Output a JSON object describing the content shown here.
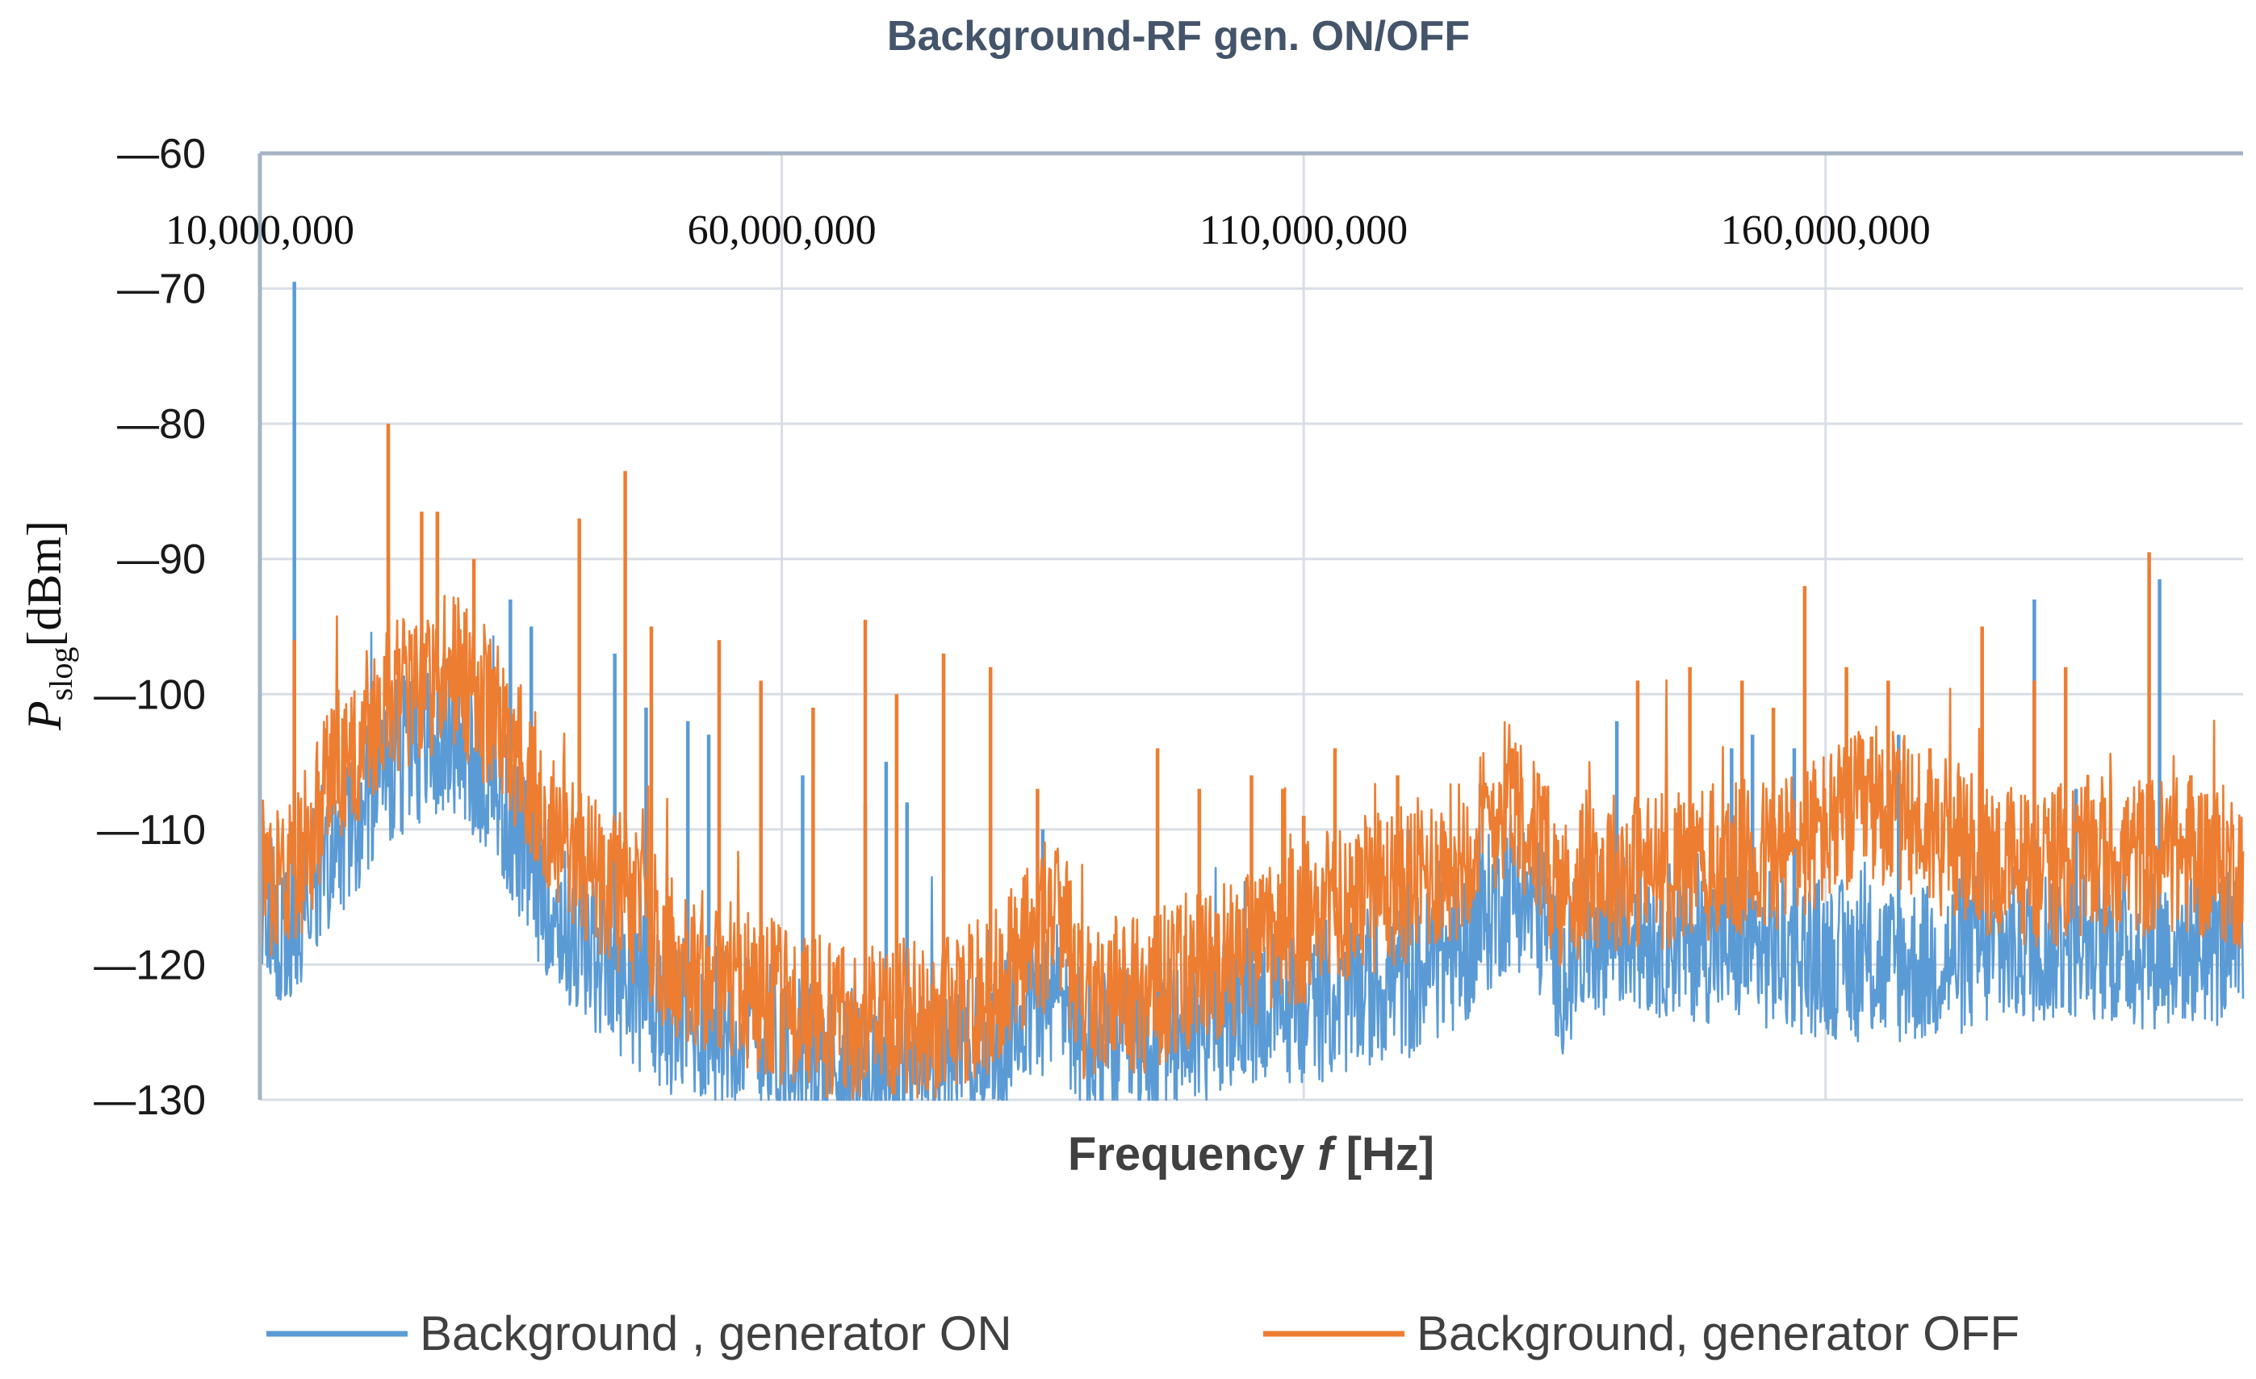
{
  "chart_data": {
    "type": "line",
    "title": "Background-RF gen. ON/OFF",
    "xlabel": "Frequency",
    "xlabel_var": "f",
    "xlabel_unit": "[Hz]",
    "ylabel_var": "P",
    "ylabel_sub": "slog",
    "ylabel_unit": "[dBm]",
    "xlim": [
      10000000,
      200000000
    ],
    "ylim": [
      -130,
      -60
    ],
    "x_ticks": [
      10000000,
      60000000,
      110000000,
      160000000
    ],
    "x_tick_labels": [
      "10,000,000",
      "60,000,000",
      "110,000,000",
      "160,000,000"
    ],
    "y_ticks": [
      -60,
      -70,
      -80,
      -90,
      -100,
      -110,
      -120,
      -130
    ],
    "y_tick_labels": [
      "—60",
      "—70",
      "—80",
      "—90",
      "—100",
      "—110",
      "—120",
      "—130"
    ],
    "x_axis_position": "top",
    "grid": true,
    "legend_position": "bottom",
    "series": [
      {
        "name": "Background , generator ON",
        "color": "#5b9bd5",
        "baseline": {
          "x": [
            10000000,
            13000000,
            17000000,
            23000000,
            28000000,
            32000000,
            36000000,
            40000000,
            45000000,
            48000000,
            50000000,
            55000000,
            60000000,
            65000000,
            70000000,
            75000000,
            80000000,
            84000000,
            87000000,
            89000000,
            92000000,
            96000000,
            100000000,
            105000000,
            110000000,
            115000000,
            120000000,
            125000000,
            130000000,
            133000000,
            135000000,
            137000000,
            140000000,
            145000000,
            150000000,
            155000000,
            160000000,
            165000000,
            170000000,
            175000000,
            180000000,
            185000000,
            190000000,
            195000000,
            200000000
          ],
          "y": [
            -116,
            -117,
            -111,
            -105,
            -103,
            -106,
            -113,
            -118,
            -121,
            -123,
            -124,
            -124.5,
            -126,
            -127.5,
            -128,
            -127.5,
            -126,
            -123,
            -122,
            -127,
            -126,
            -126,
            -124.5,
            -123,
            -123,
            -122,
            -121,
            -119,
            -114,
            -117,
            -121,
            -118,
            -117.5,
            -118,
            -118.5,
            -119,
            -119.5,
            -120,
            -120,
            -119,
            -118.5,
            -118,
            -119,
            -118.5,
            -119
          ]
        },
        "band_db": 6,
        "spikes": {
          "x": [
            13300000,
            34000000,
            36000000,
            44000000,
            47000000,
            51000000,
            53000000,
            62000000,
            68000000,
            70000000,
            72000000,
            85000000,
            96000000,
            110000000,
            120000000,
            140000000,
            151000000,
            153000000,
            157000000,
            167000000,
            175000000,
            180000000,
            184000000,
            192000000
          ],
          "y": [
            -69.5,
            -93,
            -95,
            -97,
            -101,
            -102,
            -103,
            -106,
            -108,
            -105,
            -108,
            -110,
            -110,
            -109,
            -110,
            -102,
            -104,
            -103,
            -104,
            -103,
            -108,
            -93,
            -107,
            -91.5
          ]
        }
      },
      {
        "name": "Background, generator OFF",
        "color": "#ed7d31",
        "baseline": {
          "x": [
            10000000,
            13000000,
            17000000,
            23000000,
            28000000,
            32000000,
            36000000,
            40000000,
            45000000,
            48000000,
            50000000,
            55000000,
            60000000,
            65000000,
            70000000,
            75000000,
            80000000,
            84000000,
            87000000,
            89000000,
            92000000,
            96000000,
            100000000,
            105000000,
            110000000,
            115000000,
            120000000,
            125000000,
            130000000,
            133000000,
            135000000,
            137000000,
            140000000,
            145000000,
            150000000,
            155000000,
            160000000,
            165000000,
            170000000,
            175000000,
            180000000,
            185000000,
            190000000,
            195000000,
            200000000
          ],
          "y": [
            -113,
            -114,
            -106,
            -100,
            -98,
            -101,
            -106,
            -112,
            -115,
            -118,
            -120,
            -121,
            -123,
            -124,
            -124,
            -124,
            -122,
            -118,
            -117,
            -123,
            -122,
            -122,
            -120,
            -119,
            -117,
            -115,
            -114,
            -112,
            -107,
            -112,
            -115,
            -113,
            -113,
            -113,
            -112.5,
            -112,
            -110,
            -108,
            -110,
            -112,
            -113,
            -112,
            -112,
            -112,
            -113
          ]
        },
        "band_db": 6,
        "spikes": {
          "x": [
            13300000,
            22300000,
            25500000,
            27000000,
            30500000,
            40600000,
            45000000,
            47500000,
            54000000,
            58000000,
            63000000,
            68000000,
            71000000,
            75500000,
            80000000,
            84500000,
            96000000,
            100000000,
            105000000,
            108000000,
            110000000,
            113000000,
            119000000,
            130000000,
            142000000,
            147000000,
            152000000,
            155000000,
            158000000,
            162000000,
            166000000,
            170000000,
            175000000,
            180000000,
            183000000,
            191000000,
            195000000
          ],
          "y": [
            -96,
            -80,
            -86.5,
            -86.5,
            -90,
            -87,
            -83.5,
            -95,
            -96,
            -99,
            -101,
            -94.5,
            -100,
            -97,
            -98,
            -107,
            -104,
            -107,
            -106,
            -107,
            -109,
            -104,
            -106,
            -104,
            -99,
            -98,
            -99,
            -101,
            -92,
            -98,
            -99,
            -104,
            -95,
            -99,
            -98,
            -89.5,
            -106
          ]
        }
      }
    ]
  }
}
